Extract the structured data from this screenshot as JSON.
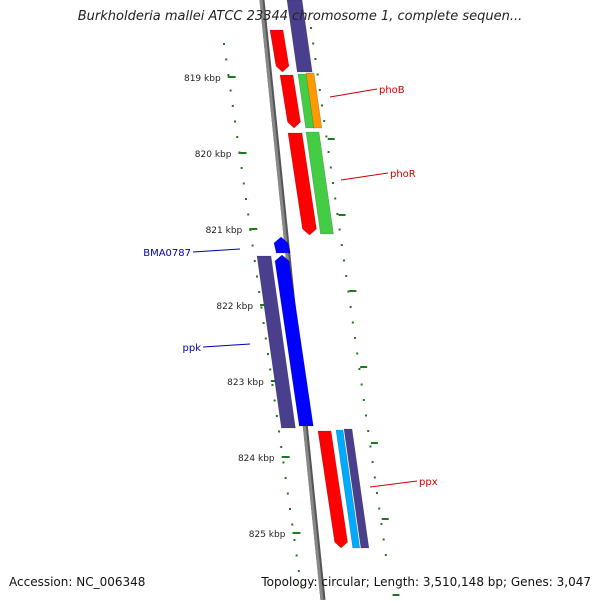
{
  "title": "Burkholderia mallei ATCC 23344 chromosome 1, complete sequen...",
  "footer": {
    "accession": "Accession: NC_006348",
    "summary": "Topology: circular; Length: 3,510,148 bp; Genes: 3,047"
  },
  "colors": {
    "backbone": "#888888",
    "tick": "#1f7a1f",
    "red": "#ff0000",
    "green": "#44cc44",
    "orange": "#ff9900",
    "purple": "#4a3f8c",
    "blue": "#0000ff",
    "cyan": "#00aaff",
    "label_red": "#cc0000",
    "label_blue": "#0000aa"
  },
  "ticks": [
    {
      "label": "819 kbp"
    },
    {
      "label": "820 kbp"
    },
    {
      "label": "821 kbp"
    },
    {
      "label": "822 kbp"
    },
    {
      "label": "823 kbp"
    },
    {
      "label": "824 kbp"
    },
    {
      "label": "825 kbp"
    }
  ],
  "gene_labels": [
    {
      "name": "phoB",
      "color": "red"
    },
    {
      "name": "phoR",
      "color": "red"
    },
    {
      "name": "BMA0787",
      "color": "blue"
    },
    {
      "name": "ppk",
      "color": "blue"
    },
    {
      "name": "ppx",
      "color": "red"
    }
  ]
}
